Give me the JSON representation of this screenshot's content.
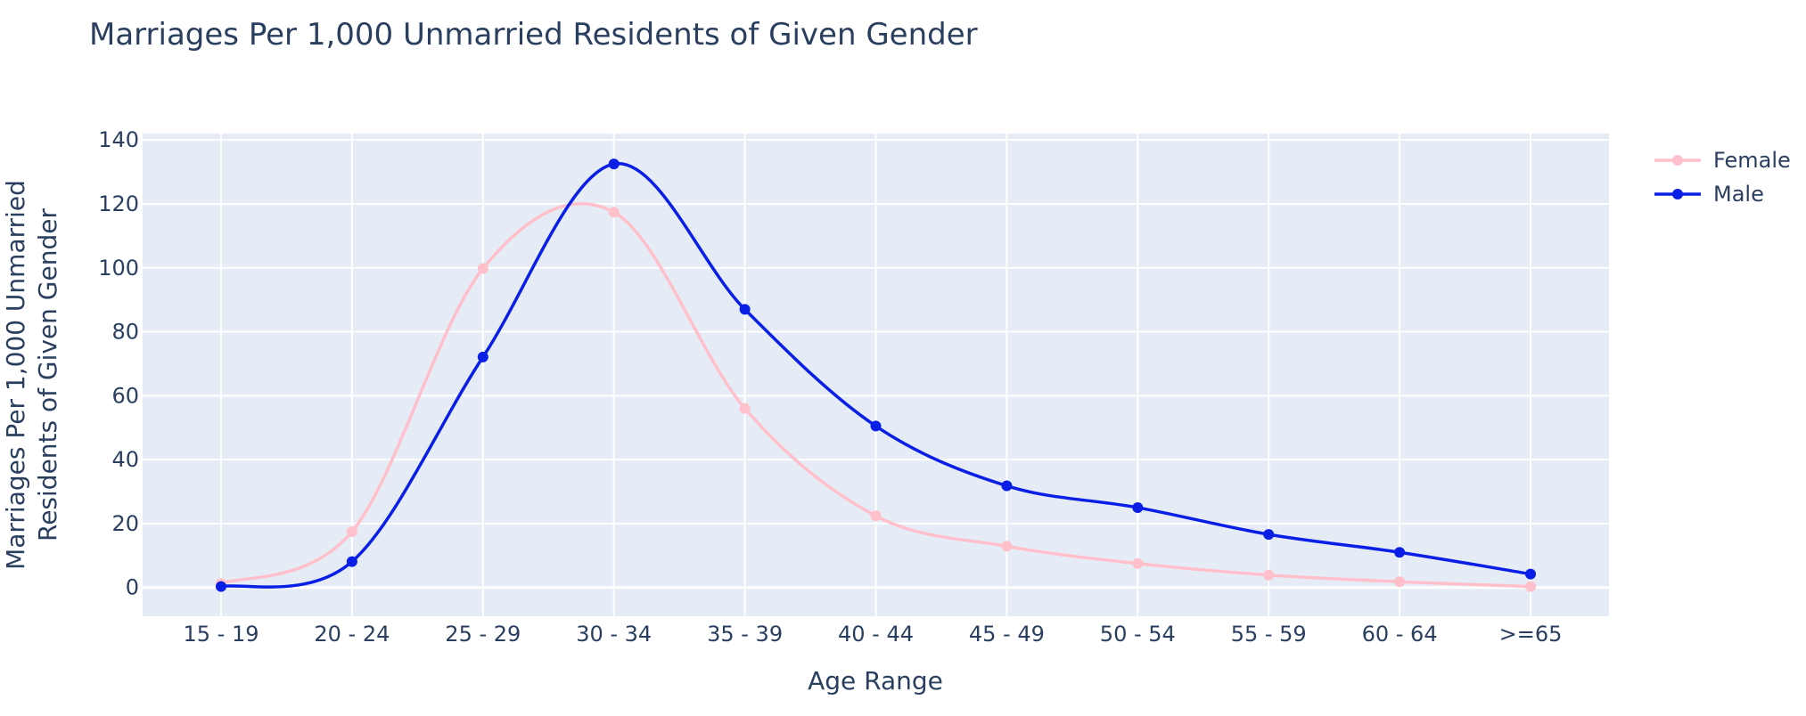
{
  "chart_data": {
    "type": "line",
    "title": "Marriages Per 1,000 Unmarried Residents of Given Gender",
    "xlabel": "Age Range",
    "ylabel_lines": [
      "Marriages Per 1,000 Unmarried",
      "Residents of Given Gender"
    ],
    "categories": [
      "15 - 19",
      "20 - 24",
      "25 - 29",
      "30 - 34",
      "35 - 39",
      "40 - 44",
      "45 - 49",
      "50 - 54",
      "55 - 59",
      "60 - 64",
      ">=65"
    ],
    "ylim": [
      -9,
      142
    ],
    "yticks": [
      0,
      20,
      40,
      60,
      80,
      100,
      120,
      140
    ],
    "grid": true,
    "legend_position": "top-right",
    "line_shape": "spline",
    "series": [
      {
        "name": "Female",
        "color": "#ffc0cb",
        "values": [
          1.2,
          17.5,
          99.8,
          117.4,
          56.0,
          22.4,
          12.9,
          7.5,
          3.9,
          1.8,
          0.3
        ]
      },
      {
        "name": "Male",
        "color": "#0a1fe6",
        "values": [
          0.3,
          8.1,
          72.1,
          132.5,
          87.0,
          50.5,
          31.8,
          25.0,
          16.6,
          11.0,
          4.2
        ]
      }
    ]
  },
  "colors": {
    "plot_background": "#e5ecf6",
    "grid": "#ffffff",
    "text": "#2a3f5f"
  }
}
